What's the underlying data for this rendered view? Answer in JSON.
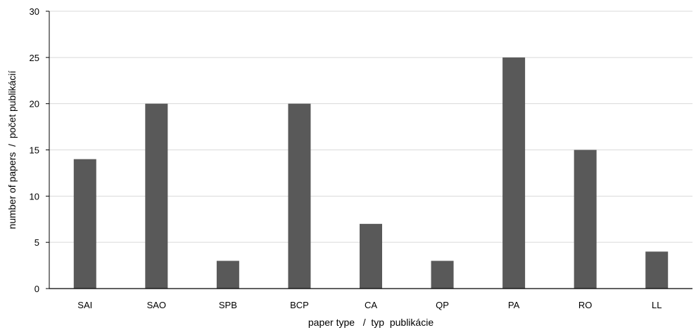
{
  "chart_data": {
    "type": "bar",
    "categories": [
      "SAI",
      "SAO",
      "SPB",
      "BCP",
      "CA",
      "QP",
      "PA",
      "RO",
      "LL"
    ],
    "values": [
      14,
      20,
      3,
      20,
      7,
      3,
      25,
      15,
      4
    ],
    "xlabel": "paper type   /  typ  publikácie",
    "ylabel": "number of papers  /  počet publikácií",
    "ylim": [
      0,
      30
    ],
    "yticks": [
      0,
      5,
      10,
      15,
      20,
      25,
      30
    ],
    "grid": true,
    "bar_color": "#595959",
    "grid_color": "#d9d9d9",
    "axis_color": "#000000"
  }
}
